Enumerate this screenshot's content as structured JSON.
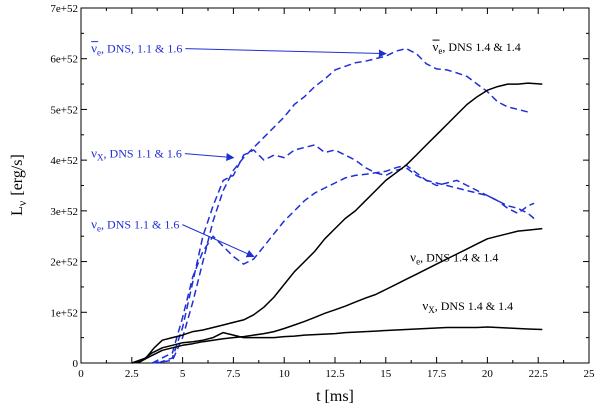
{
  "chart_data": {
    "type": "line",
    "xlabel": "t [ms]",
    "ylabel_main": "L",
    "ylabel_sub": "ν",
    "ylabel_unit": "[erg/s]",
    "xlim": [
      0,
      25
    ],
    "ylim": [
      0,
      7e+52
    ],
    "x_ticks": [
      0,
      2.5,
      5,
      7.5,
      10,
      12.5,
      15,
      17.5,
      20,
      22.5,
      25
    ],
    "x_tick_labels": [
      "0",
      "2.5",
      "5",
      "7.5",
      "10",
      "12.5",
      "15",
      "17.5",
      "20",
      "22.5",
      "25"
    ],
    "y_ticks": [
      0,
      1e+52,
      2e+52,
      3e+52,
      4e+52,
      5e+52,
      6e+52,
      7e+52
    ],
    "y_tick_labels": [
      "0",
      "1e+52",
      "2e+52",
      "3e+52",
      "4e+52",
      "5e+52",
      "6e+52",
      "7e+52"
    ],
    "grid": false,
    "colors": {
      "blue": "#1f2fd6",
      "black": "#000000"
    },
    "series": [
      {
        "style": "dashed",
        "color": "#1f2fd6",
        "points": [
          [
            3.5,
            0
          ],
          [
            4.5,
            5e+50
          ],
          [
            5,
            5e+51
          ],
          [
            5.5,
            1.2e+52
          ],
          [
            6,
            2e+52
          ],
          [
            6.5,
            2.8e+52
          ],
          [
            7,
            3.4e+52
          ],
          [
            7.5,
            3.8e+52
          ],
          [
            8,
            4.05e+52
          ],
          [
            8.5,
            4.25e+52
          ],
          [
            9,
            4.45e+52
          ],
          [
            9.5,
            4.65e+52
          ],
          [
            10,
            4.85e+52
          ],
          [
            10.5,
            5.1e+52
          ],
          [
            11,
            5.25e+52
          ],
          [
            11.5,
            5.45e+52
          ],
          [
            12,
            5.6e+52
          ],
          [
            12.5,
            5.78e+52
          ],
          [
            13,
            5.85e+52
          ],
          [
            13.5,
            5.92e+52
          ],
          [
            14,
            5.95e+52
          ],
          [
            14.5,
            6e+52
          ],
          [
            15,
            6.05e+52
          ],
          [
            15.5,
            6.15e+52
          ],
          [
            16,
            6.2e+52
          ],
          [
            16.5,
            6.1e+52
          ],
          [
            17,
            5.9e+52
          ],
          [
            17.5,
            5.8e+52
          ],
          [
            18,
            5.78e+52
          ],
          [
            18.5,
            5.72e+52
          ],
          [
            19,
            5.65e+52
          ],
          [
            19.5,
            5.5e+52
          ],
          [
            20,
            5.35e+52
          ],
          [
            20.5,
            5.15e+52
          ],
          [
            21,
            5.05e+52
          ],
          [
            21.5,
            5e+52
          ],
          [
            22,
            4.95e+52
          ]
        ]
      },
      {
        "style": "dashed",
        "color": "#1f2fd6",
        "points": [
          [
            3.8,
            0
          ],
          [
            4.5,
            1e+51
          ],
          [
            5,
            7e+51
          ],
          [
            5.5,
            1.6e+52
          ],
          [
            6,
            2.5e+52
          ],
          [
            6.5,
            3.1e+52
          ],
          [
            7,
            3.6e+52
          ],
          [
            7.5,
            3.7e+52
          ],
          [
            8,
            4.1e+52
          ],
          [
            8.5,
            4.2e+52
          ],
          [
            9,
            4e+52
          ],
          [
            9.5,
            4.1e+52
          ],
          [
            10,
            4.05e+52
          ],
          [
            10.5,
            4.2e+52
          ],
          [
            11,
            4.25e+52
          ],
          [
            11.5,
            4.3e+52
          ],
          [
            12,
            4.15e+52
          ],
          [
            12.5,
            4.2e+52
          ],
          [
            13,
            4.1e+52
          ],
          [
            13.5,
            4e+52
          ],
          [
            14,
            3.85e+52
          ],
          [
            14.5,
            3.75e+52
          ],
          [
            15,
            3.7e+52
          ],
          [
            15.5,
            3.8e+52
          ],
          [
            16,
            3.85e+52
          ],
          [
            16.5,
            3.7e+52
          ],
          [
            17,
            3.6e+52
          ],
          [
            17.5,
            3.55e+52
          ],
          [
            18,
            3.5e+52
          ],
          [
            18.5,
            3.45e+52
          ],
          [
            19,
            3.4e+52
          ],
          [
            19.5,
            3.35e+52
          ],
          [
            20,
            3.3e+52
          ],
          [
            20.5,
            3.2e+52
          ],
          [
            21,
            3.1e+52
          ],
          [
            21.5,
            3.05e+52
          ],
          [
            22,
            2.95e+52
          ],
          [
            22.3,
            2.85e+52
          ]
        ]
      },
      {
        "style": "dashed",
        "color": "#1f2fd6",
        "points": [
          [
            3.5,
            0
          ],
          [
            4.5,
            2e+51
          ],
          [
            5,
            9e+51
          ],
          [
            5.5,
            1.7e+52
          ],
          [
            6,
            2.2e+52
          ],
          [
            6.5,
            2.5e+52
          ],
          [
            7,
            2.3e+52
          ],
          [
            7.5,
            2.1e+52
          ],
          [
            8,
            1.95e+52
          ],
          [
            8.5,
            2.05e+52
          ],
          [
            9,
            2.3e+52
          ],
          [
            9.5,
            2.55e+52
          ],
          [
            10,
            2.8e+52
          ],
          [
            10.5,
            3e+52
          ],
          [
            11,
            3.2e+52
          ],
          [
            11.5,
            3.35e+52
          ],
          [
            12,
            3.45e+52
          ],
          [
            12.5,
            3.55e+52
          ],
          [
            13,
            3.65e+52
          ],
          [
            13.5,
            3.7e+52
          ],
          [
            14,
            3.72e+52
          ],
          [
            14.5,
            3.75e+52
          ],
          [
            15,
            3.78e+52
          ],
          [
            15.5,
            3.85e+52
          ],
          [
            16,
            3.9e+52
          ],
          [
            16.5,
            3.75e+52
          ],
          [
            17,
            3.6e+52
          ],
          [
            17.5,
            3.5e+52
          ],
          [
            18,
            3.55e+52
          ],
          [
            18.5,
            3.6e+52
          ],
          [
            19,
            3.5e+52
          ],
          [
            19.5,
            3.4e+52
          ],
          [
            20,
            3.3e+52
          ],
          [
            20.5,
            3.2e+52
          ],
          [
            21,
            3.05e+52
          ],
          [
            21.5,
            2.95e+52
          ],
          [
            22,
            3.1e+52
          ],
          [
            22.3,
            3.15e+52
          ]
        ]
      },
      {
        "style": "solid",
        "color": "#000000",
        "points": [
          [
            2.5,
            0
          ],
          [
            3.2,
            1e+51
          ],
          [
            3.6,
            3e+51
          ],
          [
            4,
            4.5e+51
          ],
          [
            4.5,
            5e+51
          ],
          [
            5,
            5.5e+51
          ],
          [
            5.5,
            6.2e+51
          ],
          [
            6,
            6.5e+51
          ],
          [
            6.5,
            7e+51
          ],
          [
            7,
            7.5e+51
          ],
          [
            7.5,
            8e+51
          ],
          [
            8,
            8.5e+51
          ],
          [
            8.5,
            9.5e+51
          ],
          [
            9,
            1.1e+52
          ],
          [
            9.5,
            1.3e+52
          ],
          [
            10,
            1.55e+52
          ],
          [
            10.5,
            1.8e+52
          ],
          [
            11,
            2e+52
          ],
          [
            11.5,
            2.2e+52
          ],
          [
            12,
            2.45e+52
          ],
          [
            12.5,
            2.65e+52
          ],
          [
            13,
            2.85e+52
          ],
          [
            13.5,
            3e+52
          ],
          [
            14,
            3.2e+52
          ],
          [
            14.5,
            3.4e+52
          ],
          [
            15,
            3.6e+52
          ],
          [
            15.5,
            3.75e+52
          ],
          [
            16,
            3.9e+52
          ],
          [
            16.5,
            4.1e+52
          ],
          [
            17,
            4.3e+52
          ],
          [
            17.5,
            4.5e+52
          ],
          [
            18,
            4.7e+52
          ],
          [
            18.5,
            4.9e+52
          ],
          [
            19,
            5.1e+52
          ],
          [
            19.5,
            5.25e+52
          ],
          [
            20,
            5.38e+52
          ],
          [
            20.5,
            5.45e+52
          ],
          [
            21,
            5.5e+52
          ],
          [
            21.5,
            5.5e+52
          ],
          [
            22,
            5.52e+52
          ],
          [
            22.7,
            5.5e+52
          ]
        ]
      },
      {
        "style": "solid",
        "color": "#000000",
        "points": [
          [
            2.8,
            0
          ],
          [
            3.5,
            1.5e+51
          ],
          [
            4,
            2.5e+51
          ],
          [
            4.5,
            3e+51
          ],
          [
            5,
            3.5e+51
          ],
          [
            5.5,
            3.8e+51
          ],
          [
            6,
            4.2e+51
          ],
          [
            6.5,
            4.5e+51
          ],
          [
            7,
            4.8e+51
          ],
          [
            7.5,
            5e+51
          ],
          [
            8,
            5.2e+51
          ],
          [
            8.5,
            5.5e+51
          ],
          [
            9,
            5.8e+51
          ],
          [
            9.5,
            6.2e+51
          ],
          [
            10,
            6.8e+51
          ],
          [
            10.5,
            7.5e+51
          ],
          [
            11,
            8.2e+51
          ],
          [
            11.5,
            9e+51
          ],
          [
            12,
            9.8e+51
          ],
          [
            12.5,
            1.05e+52
          ],
          [
            13,
            1.12e+52
          ],
          [
            13.5,
            1.2e+52
          ],
          [
            14,
            1.28e+52
          ],
          [
            14.5,
            1.35e+52
          ],
          [
            15,
            1.45e+52
          ],
          [
            15.5,
            1.55e+52
          ],
          [
            16,
            1.65e+52
          ],
          [
            16.5,
            1.75e+52
          ],
          [
            17,
            1.85e+52
          ],
          [
            17.5,
            1.95e+52
          ],
          [
            18,
            2.05e+52
          ],
          [
            18.5,
            2.15e+52
          ],
          [
            19,
            2.25e+52
          ],
          [
            19.5,
            2.35e+52
          ],
          [
            20,
            2.45e+52
          ],
          [
            20.5,
            2.5e+52
          ],
          [
            21,
            2.55e+52
          ],
          [
            21.5,
            2.6e+52
          ],
          [
            22,
            2.62e+52
          ],
          [
            22.7,
            2.65e+52
          ]
        ]
      },
      {
        "style": "solid",
        "color": "#000000",
        "points": [
          [
            2.5,
            0
          ],
          [
            3,
            5e+50
          ],
          [
            3.5,
            2e+51
          ],
          [
            4,
            3e+51
          ],
          [
            4.5,
            3.5e+51
          ],
          [
            5,
            4e+51
          ],
          [
            5.5,
            4.2e+51
          ],
          [
            6,
            4.5e+51
          ],
          [
            6.5,
            5e+51
          ],
          [
            7,
            6e+51
          ],
          [
            7.5,
            5.5e+51
          ],
          [
            8,
            5e+51
          ],
          [
            8.5,
            5e+51
          ],
          [
            9,
            5e+51
          ],
          [
            9.5,
            5e+51
          ],
          [
            10,
            5.2e+51
          ],
          [
            10.5,
            5.3e+51
          ],
          [
            11,
            5.5e+51
          ],
          [
            11.5,
            5.6e+51
          ],
          [
            12,
            5.7e+51
          ],
          [
            12.5,
            5.8e+51
          ],
          [
            13,
            6e+51
          ],
          [
            13.5,
            6.1e+51
          ],
          [
            14,
            6.2e+51
          ],
          [
            14.5,
            6.3e+51
          ],
          [
            15,
            6.4e+51
          ],
          [
            15.5,
            6.5e+51
          ],
          [
            16,
            6.6e+51
          ],
          [
            16.5,
            6.7e+51
          ],
          [
            17,
            6.8e+51
          ],
          [
            17.5,
            6.9e+51
          ],
          [
            18,
            7e+51
          ],
          [
            18.5,
            7e+51
          ],
          [
            19,
            7e+51
          ],
          [
            19.5,
            7e+51
          ],
          [
            20,
            7.1e+51
          ],
          [
            20.5,
            7e+51
          ],
          [
            21,
            6.9e+51
          ],
          [
            21.5,
            6.8e+51
          ],
          [
            22,
            6.7e+51
          ],
          [
            22.7,
            6.6e+51
          ]
        ]
      }
    ],
    "annotations": [
      {
        "sym": "ν",
        "bar": true,
        "sub": "e",
        "text": ", DNS, 1.1 & 1.6",
        "color": "#1f2fd6",
        "x": 0.5,
        "y": 6.12e+52,
        "arrow_to": [
          15,
          6.1e+52
        ]
      },
      {
        "sym": "ν",
        "bar": false,
        "sub": "X",
        "text": ", DNS 1.1 & 1.6",
        "color": "#1f2fd6",
        "x": 0.5,
        "y": 4.05e+52,
        "arrow_to": [
          7.5,
          4.05e+52
        ]
      },
      {
        "sym": "ν",
        "bar": false,
        "sub": "e",
        "text": ", DNS 1.1 & 1.6",
        "color": "#1f2fd6",
        "x": 0.5,
        "y": 2.65e+52,
        "arrow_to": [
          8.5,
          2.1e+52
        ]
      },
      {
        "sym": "ν",
        "bar": true,
        "sub": "e",
        "text": ", DNS 1.4 & 1.4",
        "color": "#000000",
        "x": 17.3,
        "y": 6.15e+52
      },
      {
        "sym": "ν",
        "bar": false,
        "sub": "e",
        "text": ", DNS 1.4 & 1.4",
        "color": "#000000",
        "x": 16.2,
        "y": 2e+52
      },
      {
        "sym": "ν",
        "bar": false,
        "sub": "X",
        "text": ", DNS 1.4 & 1.4",
        "color": "#000000",
        "x": 16.8,
        "y": 1.05e+52
      }
    ]
  }
}
